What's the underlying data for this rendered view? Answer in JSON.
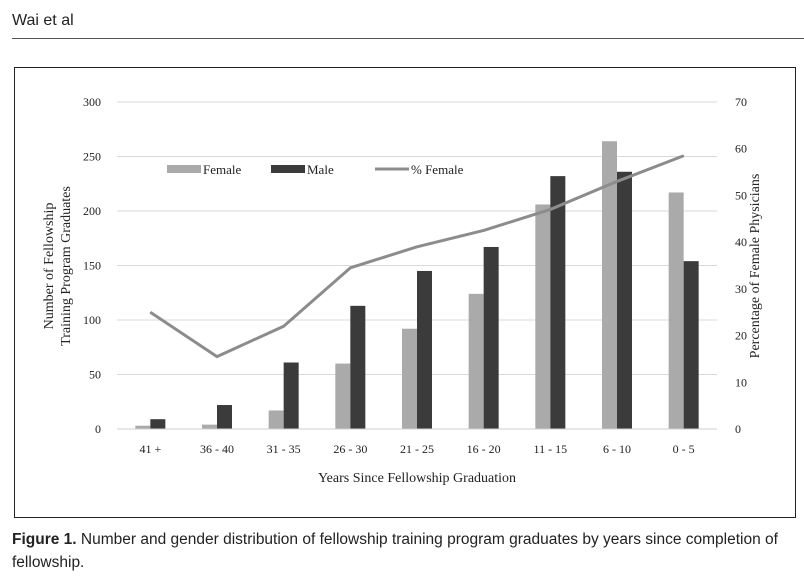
{
  "running_head": "Wai et al",
  "caption": {
    "label": "Figure 1.",
    "text": " Number and gender distribution of fellowship training program graduates by years since completion of fellowship."
  },
  "chart_data": {
    "type": "bar",
    "categories": [
      "41 +",
      "36 - 40",
      "31 - 35",
      "26 - 30",
      "21 - 25",
      "16 - 20",
      "11 - 15",
      "6 - 10",
      "0 - 5"
    ],
    "series": [
      {
        "name": "Female",
        "kind": "bar",
        "axis": "left",
        "color": "#aaaaaa",
        "values": [
          3,
          4,
          17,
          60,
          92,
          124,
          206,
          264,
          217
        ]
      },
      {
        "name": "Male",
        "kind": "bar",
        "axis": "left",
        "color": "#3b3b3b",
        "values": [
          9,
          22,
          61,
          113,
          145,
          167,
          232,
          236,
          154
        ]
      },
      {
        "name": "% Female",
        "kind": "line",
        "axis": "right",
        "color": "#8c8c8c",
        "values": [
          25,
          15.5,
          22,
          34.5,
          39,
          42.5,
          47,
          53,
          58.5
        ]
      }
    ],
    "xlabel": "Years Since Fellowship Graduation",
    "ylabel": "Number of Fellowship Training Program Graduates",
    "ylabel_lines": [
      "Number of  Fellowship",
      "Training Program Graduates"
    ],
    "y2label": "Percentage of Female Physicians",
    "ylim": [
      0,
      300
    ],
    "y2lim": [
      0,
      70
    ],
    "yticks": [
      "0",
      "50",
      "100",
      "150",
      "200",
      "250",
      "300"
    ],
    "y2ticks": [
      "0",
      "10",
      "20",
      "30",
      "40",
      "50",
      "60",
      "70"
    ],
    "grid": true,
    "legend_placement": "top-left"
  }
}
